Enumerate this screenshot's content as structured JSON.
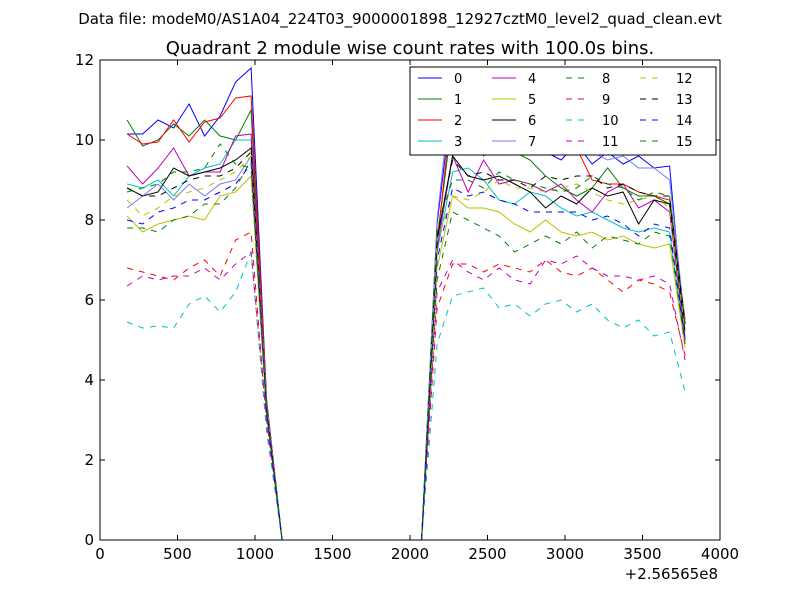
{
  "file_line": "Data file: modeM0/AS1A04_224T03_9000001898_12927cztM0_level2_quad_clean.evt",
  "chart_data": {
    "type": "line",
    "title": "Quadrant 2 module wise count rates with 100.0s bins.",
    "xlabel": "",
    "ylabel": "",
    "x_offset_label": "+2.56565e8",
    "xlim": [
      0,
      4000
    ],
    "ylim": [
      0,
      12
    ],
    "x_ticks": [
      0,
      500,
      1000,
      1500,
      2000,
      2500,
      3000,
      3500,
      4000
    ],
    "y_ticks": [
      0,
      2,
      4,
      6,
      8,
      10,
      12
    ],
    "grid": false,
    "legend_position": "top-right",
    "legend_columns": 4,
    "x": [
      175,
      275,
      375,
      475,
      575,
      675,
      775,
      875,
      975,
      1075,
      1175,
      1275,
      1375,
      1475,
      1575,
      1675,
      1775,
      1875,
      1975,
      2075,
      2175,
      2275,
      2375,
      2475,
      2575,
      2675,
      2775,
      2875,
      2975,
      3075,
      3175,
      3275,
      3375,
      3475,
      3575,
      3675,
      3775
    ],
    "series": [
      {
        "name": "0",
        "color": "#0000ff",
        "style": "solid",
        "values": [
          10.15,
          10.15,
          10.5,
          10.3,
          10.9,
          10.1,
          10.6,
          11.45,
          11.8,
          3.5,
          0,
          0,
          0,
          0,
          0,
          0,
          0,
          0,
          0,
          0,
          7.9,
          11.1,
          10.3,
          10.3,
          10.4,
          10.1,
          9.9,
          9.7,
          9.5,
          9.9,
          9.4,
          9.7,
          9.4,
          9.6,
          9.3,
          9.35,
          5.0
        ]
      },
      {
        "name": "1",
        "color": "#008000",
        "style": "solid",
        "values": [
          10.5,
          9.85,
          10.0,
          10.4,
          10.1,
          10.5,
          10.1,
          10.0,
          10.75,
          3.2,
          0,
          0,
          0,
          0,
          0,
          0,
          0,
          0,
          0,
          0,
          7.5,
          10.6,
          10.2,
          9.7,
          9.7,
          9.7,
          9.5,
          9.1,
          8.8,
          8.6,
          8.8,
          9.3,
          8.8,
          8.6,
          8.6,
          8.4,
          5.0
        ]
      },
      {
        "name": "2",
        "color": "#ff0000",
        "style": "solid",
        "values": [
          10.15,
          9.9,
          9.95,
          10.5,
          9.95,
          10.45,
          10.55,
          11.05,
          11.1,
          3.5,
          0,
          0,
          0,
          0,
          0,
          0,
          0,
          0,
          0,
          0,
          7.4,
          11.0,
          10.6,
          9.6,
          10.0,
          10.3,
          10.0,
          9.7,
          10.0,
          9.8,
          9.0,
          8.9,
          8.9,
          8.7,
          8.6,
          8.5,
          5.5
        ]
      },
      {
        "name": "3",
        "color": "#00bfbf",
        "style": "solid",
        "values": [
          8.9,
          8.8,
          9.0,
          8.6,
          9.1,
          9.3,
          9.4,
          10.0,
          10.0,
          3.4,
          0,
          0,
          0,
          0,
          0,
          0,
          0,
          0,
          0,
          0,
          7.2,
          9.2,
          9.3,
          9.0,
          8.5,
          8.4,
          8.7,
          8.6,
          8.3,
          8.1,
          8.2,
          8.0,
          7.8,
          7.7,
          7.8,
          7.7,
          4.9
        ]
      },
      {
        "name": "4",
        "color": "#bf00bf",
        "style": "solid",
        "values": [
          9.35,
          8.9,
          9.3,
          9.8,
          9.1,
          9.2,
          9.2,
          10.1,
          10.15,
          3.3,
          0,
          0,
          0,
          0,
          0,
          0,
          0,
          0,
          0,
          0,
          7.3,
          9.6,
          8.7,
          9.5,
          8.9,
          9.0,
          8.9,
          8.7,
          8.9,
          8.5,
          8.2,
          8.7,
          8.9,
          8.3,
          8.5,
          8.2,
          5.0
        ]
      },
      {
        "name": "5",
        "color": "#bfbf00",
        "style": "solid",
        "values": [
          8.1,
          7.7,
          7.9,
          8.0,
          8.1,
          8.0,
          8.6,
          8.7,
          9.1,
          3.1,
          0,
          0,
          0,
          0,
          0,
          0,
          0,
          0,
          0,
          0,
          6.8,
          8.6,
          8.3,
          8.3,
          8.2,
          7.9,
          7.7,
          8.0,
          7.7,
          7.6,
          7.7,
          7.5,
          7.6,
          7.4,
          7.3,
          7.4,
          4.8
        ]
      },
      {
        "name": "6",
        "color": "#000000",
        "style": "solid",
        "values": [
          8.8,
          8.6,
          8.7,
          9.3,
          9.1,
          9.2,
          9.3,
          9.5,
          9.8,
          3.3,
          0,
          0,
          0,
          0,
          0,
          0,
          0,
          0,
          0,
          0,
          7.5,
          9.6,
          9.1,
          9.0,
          9.1,
          8.9,
          8.7,
          8.3,
          8.6,
          8.4,
          8.8,
          8.6,
          8.7,
          7.9,
          8.5,
          8.4,
          5.2
        ]
      },
      {
        "name": "7",
        "color": "#7777ff",
        "style": "solid",
        "values": [
          8.3,
          8.6,
          8.9,
          8.5,
          8.9,
          8.6,
          8.9,
          9.0,
          9.6,
          3.4,
          0,
          0,
          0,
          0,
          0,
          0,
          0,
          0,
          0,
          0,
          8.0,
          11.6,
          10.4,
          10.3,
          10.1,
          10.3,
          10.4,
          10.0,
          10.5,
          10.1,
          9.7,
          9.5,
          9.6,
          9.3,
          9.3,
          9.0,
          5.4
        ]
      },
      {
        "name": "8",
        "color": "#008000",
        "style": "dashed",
        "values": [
          7.8,
          7.8,
          7.7,
          8.0,
          8.1,
          8.4,
          8.4,
          8.8,
          9.5,
          3.2,
          0,
          0,
          0,
          0,
          0,
          0,
          0,
          0,
          0,
          0,
          6.5,
          8.2,
          8.0,
          7.8,
          7.6,
          7.2,
          7.4,
          7.6,
          7.4,
          7.7,
          7.3,
          7.6,
          7.5,
          7.4,
          7.7,
          7.6,
          4.9
        ]
      },
      {
        "name": "9",
        "color": "#ff0000",
        "style": "dashed",
        "values": [
          6.8,
          6.7,
          6.6,
          6.5,
          6.8,
          7.0,
          6.6,
          7.5,
          7.7,
          2.9,
          0,
          0,
          0,
          0,
          0,
          0,
          0,
          0,
          0,
          0,
          5.8,
          6.9,
          6.9,
          6.7,
          6.9,
          6.8,
          6.7,
          7.0,
          6.7,
          6.6,
          6.8,
          6.5,
          6.2,
          6.5,
          6.4,
          6.2,
          4.6
        ]
      },
      {
        "name": "10",
        "color": "#00bfbf",
        "style": "dashed",
        "values": [
          5.45,
          5.3,
          5.35,
          5.3,
          5.9,
          6.1,
          5.7,
          6.2,
          7.2,
          2.7,
          0,
          0,
          0,
          0,
          0,
          0,
          0,
          0,
          0,
          0,
          4.9,
          6.1,
          6.2,
          6.3,
          5.8,
          5.9,
          5.6,
          5.9,
          6.0,
          5.7,
          5.9,
          5.5,
          5.3,
          5.5,
          5.1,
          5.2,
          3.7
        ]
      },
      {
        "name": "11",
        "color": "#bf00bf",
        "style": "dashed",
        "values": [
          6.35,
          6.6,
          6.5,
          6.6,
          6.6,
          6.8,
          6.5,
          6.9,
          7.2,
          3.0,
          0,
          0,
          0,
          0,
          0,
          0,
          0,
          0,
          0,
          0,
          6.2,
          7.0,
          6.7,
          6.5,
          6.8,
          6.5,
          6.4,
          7.0,
          6.9,
          7.1,
          6.8,
          6.6,
          6.6,
          6.5,
          6.6,
          6.4,
          4.5
        ]
      },
      {
        "name": "12",
        "color": "#bfbf00",
        "style": "dashed",
        "values": [
          8.5,
          8.1,
          8.3,
          8.6,
          8.7,
          8.8,
          9.0,
          9.2,
          9.6,
          3.3,
          0,
          0,
          0,
          0,
          0,
          0,
          0,
          0,
          0,
          0,
          7.5,
          8.6,
          8.5,
          8.7,
          9.0,
          8.8,
          8.8,
          8.7,
          8.8,
          8.9,
          8.7,
          8.5,
          8.4,
          8.5,
          8.6,
          8.3,
          5.2
        ]
      },
      {
        "name": "13",
        "color": "#000000",
        "style": "dashed",
        "values": [
          8.8,
          8.6,
          8.6,
          8.8,
          9.0,
          9.1,
          9.1,
          9.3,
          9.7,
          3.3,
          0,
          0,
          0,
          0,
          0,
          0,
          0,
          0,
          0,
          0,
          7.6,
          9.5,
          9.1,
          9.2,
          9.0,
          9.0,
          8.8,
          9.1,
          9.0,
          9.1,
          9.1,
          8.8,
          8.9,
          8.7,
          8.6,
          8.6,
          5.4
        ]
      },
      {
        "name": "14",
        "color": "#0000ff",
        "style": "dashed",
        "values": [
          8.0,
          7.9,
          8.2,
          8.3,
          8.5,
          8.5,
          8.7,
          8.9,
          9.4,
          3.2,
          0,
          0,
          0,
          0,
          0,
          0,
          0,
          0,
          0,
          0,
          7.0,
          8.8,
          8.6,
          8.7,
          8.5,
          8.4,
          8.2,
          8.2,
          8.2,
          8.2,
          8.0,
          8.1,
          7.9,
          7.6,
          7.9,
          7.8,
          5.0
        ]
      },
      {
        "name": "15",
        "color": "#008000",
        "style": "dashed",
        "values": [
          8.7,
          8.8,
          8.9,
          9.2,
          9.2,
          9.3,
          9.9,
          9.4,
          9.3,
          3.4,
          0,
          0,
          0,
          0,
          0,
          0,
          0,
          0,
          0,
          0,
          7.8,
          9.0,
          9.0,
          8.8,
          9.2,
          9.0,
          8.9,
          8.8,
          8.7,
          8.8,
          9.1,
          8.9,
          8.8,
          8.5,
          8.7,
          8.6,
          5.4
        ]
      }
    ]
  }
}
